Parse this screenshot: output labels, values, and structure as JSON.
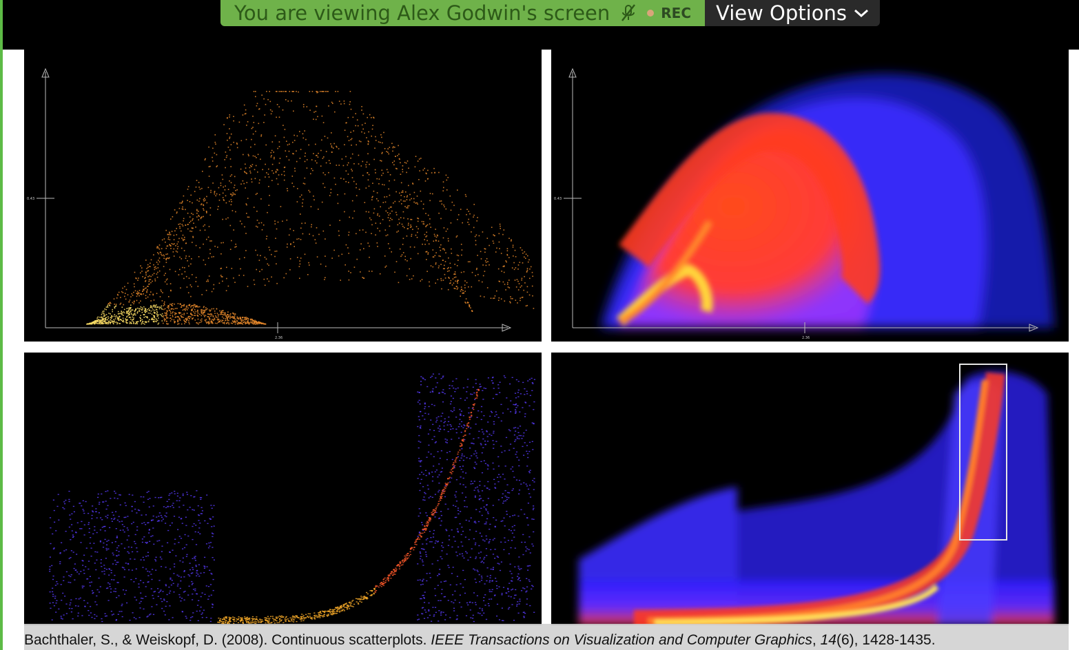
{
  "share_banner": {
    "viewing_text": "You are viewing Alex Godwin's screen",
    "rec_label": "REC",
    "view_options_label": "View Options"
  },
  "panels": [
    {
      "id": "scatter-points",
      "y_tick_label": "0.43",
      "x_tick_label": "2.36"
    },
    {
      "id": "continuous-scatter",
      "y_tick_label": "0.43",
      "x_tick_label": "2.36"
    },
    {
      "id": "scatter-points-binned"
    },
    {
      "id": "continuous-scatter-zoom"
    }
  ],
  "citation": {
    "authors": "Bachthaler, S., & Weiskopf, D. (2008). Continuous scatterplots. ",
    "journal": "IEEE Transactions on Visualization and Computer Graphics",
    "sep": ", ",
    "volume": "14",
    "rest": "(6), 1428-1435."
  },
  "colors": {
    "banner_green": "#6fb24a",
    "banner_dark": "#2a2a2a",
    "heat_low": "#2a1cff",
    "heat_mid": "#ff3a1a",
    "heat_high": "#ffe84a"
  }
}
